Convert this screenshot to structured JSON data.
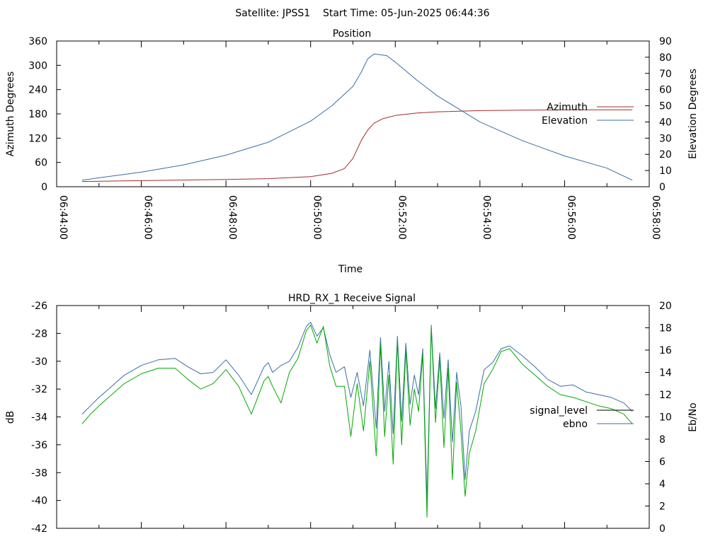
{
  "header": {
    "title": "Satellite: JPSS1    Start Time: 05-Jun-2025 06:44:36"
  },
  "chart_data": [
    {
      "type": "line",
      "title": "Position",
      "xlabel": "Time",
      "ylabel": "Azimuth Degrees",
      "y2label": "Elevation Degrees",
      "x_ticks": [
        "06:44:00",
        "06:46:00",
        "06:48:00",
        "06:50:00",
        "06:52:00",
        "06:54:00",
        "06:56:00",
        "06:58:00"
      ],
      "xlim_minutes": [
        0,
        14
      ],
      "ylim": [
        0,
        360
      ],
      "y_ticks": [
        0,
        60,
        120,
        180,
        240,
        300,
        360
      ],
      "y2lim": [
        0,
        90
      ],
      "y2_ticks": [
        0,
        10,
        20,
        30,
        40,
        50,
        60,
        70,
        80,
        90
      ],
      "legend_position": "right",
      "grid": false,
      "series": [
        {
          "name": "Azimuth",
          "axis": "left",
          "color": "#a52a2a",
          "x_minutes": [
            0.6,
            2,
            4,
            5,
            6,
            6.5,
            6.8,
            7.0,
            7.2,
            7.35,
            7.5,
            7.7,
            8,
            8.5,
            9,
            10,
            11,
            12,
            13,
            13.6
          ],
          "values": [
            13,
            15,
            18,
            20,
            25,
            33,
            45,
            70,
            115,
            140,
            157,
            168,
            176,
            182,
            185,
            188,
            189,
            190,
            190,
            190
          ]
        },
        {
          "name": "Elevation",
          "axis": "right",
          "color": "#3a6ea5",
          "x_minutes": [
            0.6,
            1,
            2,
            3,
            4,
            5,
            6,
            6.5,
            7,
            7.2,
            7.35,
            7.5,
            7.8,
            8,
            8.5,
            9,
            10,
            11,
            12,
            13,
            13.6
          ],
          "values": [
            4,
            5.5,
            9,
            13.5,
            19.5,
            27.5,
            40.5,
            50,
            62,
            71,
            79,
            82,
            81,
            77,
            66,
            56,
            40,
            28.5,
            19,
            11.5,
            4
          ]
        }
      ]
    },
    {
      "type": "line",
      "title": "HRD_RX_1 Receive Signal",
      "ylabel": "dB",
      "y2label": "Eb/No",
      "xlim_minutes": [
        0,
        14
      ],
      "ylim": [
        -42,
        -26
      ],
      "y_ticks": [
        -42,
        -40,
        -38,
        -36,
        -34,
        -32,
        -30,
        -28,
        -26
      ],
      "y2lim": [
        0,
        20
      ],
      "y2_ticks": [
        0,
        2,
        4,
        6,
        8,
        10,
        12,
        14,
        16,
        18,
        20
      ],
      "legend_position": "right",
      "grid": false,
      "series": [
        {
          "name": "signal_level",
          "axis": "left",
          "color": "#3a6ea5",
          "x_minutes": [
            0.6,
            0.8,
            1.0,
            1.3,
            1.6,
            2.0,
            2.4,
            2.8,
            3.1,
            3.4,
            3.7,
            4.0,
            4.3,
            4.6,
            4.9,
            5.0,
            5.1,
            5.3,
            5.5,
            5.7,
            5.9,
            6.0,
            6.15,
            6.3,
            6.45,
            6.6,
            6.8,
            6.95,
            7.1,
            7.25,
            7.4,
            7.55,
            7.65,
            7.75,
            7.85,
            7.95,
            8.05,
            8.15,
            8.25,
            8.35,
            8.45,
            8.55,
            8.65,
            8.75,
            8.85,
            8.95,
            9.05,
            9.15,
            9.25,
            9.35,
            9.45,
            9.55,
            9.65,
            9.75,
            9.9,
            10.1,
            10.3,
            10.5,
            10.7,
            11.0,
            11.3,
            11.6,
            11.9,
            12.2,
            12.5,
            12.8,
            13.1,
            13.4,
            13.6
          ],
          "values": [
            -33.8,
            -33.2,
            -32.6,
            -31.8,
            -31.0,
            -30.3,
            -29.9,
            -29.8,
            -30.4,
            -30.9,
            -30.8,
            -29.9,
            -31.0,
            -32.4,
            -30.4,
            -30.1,
            -30.8,
            -30.3,
            -30.0,
            -29.0,
            -27.5,
            -27.2,
            -28.2,
            -27.6,
            -29.5,
            -30.8,
            -30.4,
            -32.6,
            -30.8,
            -33.2,
            -29.2,
            -34.8,
            -28.3,
            -33.6,
            -30.0,
            -35.2,
            -28.2,
            -34.3,
            -28.7,
            -33.1,
            -31.0,
            -32.4,
            -29.1,
            -40.0,
            -27.4,
            -33.4,
            -29.4,
            -34.1,
            -29.9,
            -35.8,
            -30.8,
            -33.2,
            -38.5,
            -35.0,
            -33.6,
            -30.6,
            -30.1,
            -29.1,
            -28.9,
            -29.6,
            -30.4,
            -31.3,
            -31.8,
            -31.7,
            -32.2,
            -32.4,
            -32.6,
            -33.0,
            -33.6
          ]
        },
        {
          "name": "ebno",
          "axis": "left",
          "color": "#00aa00",
          "x_minutes": [
            0.6,
            0.8,
            1.0,
            1.3,
            1.6,
            2.0,
            2.4,
            2.8,
            3.1,
            3.4,
            3.7,
            4.0,
            4.3,
            4.6,
            4.9,
            5.0,
            5.1,
            5.3,
            5.5,
            5.7,
            5.9,
            6.0,
            6.15,
            6.3,
            6.45,
            6.6,
            6.8,
            6.95,
            7.1,
            7.25,
            7.4,
            7.55,
            7.65,
            7.75,
            7.85,
            7.95,
            8.05,
            8.15,
            8.25,
            8.35,
            8.45,
            8.55,
            8.65,
            8.75,
            8.85,
            8.95,
            9.05,
            9.15,
            9.25,
            9.35,
            9.45,
            9.55,
            9.65,
            9.75,
            9.9,
            10.1,
            10.3,
            10.5,
            10.7,
            11.0,
            11.3,
            11.6,
            11.9,
            12.2,
            12.5,
            12.8,
            13.1,
            13.4,
            13.6
          ],
          "values": [
            -34.5,
            -33.8,
            -33.2,
            -32.4,
            -31.6,
            -30.9,
            -30.5,
            -30.5,
            -31.3,
            -32.0,
            -31.6,
            -30.6,
            -31.8,
            -33.8,
            -31.4,
            -31.1,
            -31.8,
            -33.0,
            -30.8,
            -29.8,
            -27.8,
            -27.4,
            -28.7,
            -27.5,
            -30.3,
            -31.8,
            -31.8,
            -35.4,
            -31.6,
            -35.0,
            -30.0,
            -36.8,
            -28.8,
            -35.4,
            -31.0,
            -37.4,
            -28.5,
            -36.0,
            -29.2,
            -34.6,
            -32.0,
            -33.6,
            -29.5,
            -41.2,
            -27.6,
            -34.4,
            -29.8,
            -36.2,
            -30.5,
            -38.5,
            -31.5,
            -35.0,
            -39.7,
            -36.6,
            -35.0,
            -31.6,
            -30.6,
            -29.3,
            -29.1,
            -30.2,
            -31.0,
            -31.8,
            -32.4,
            -32.6,
            -32.9,
            -33.2,
            -33.4,
            -33.8,
            -34.5
          ]
        }
      ]
    }
  ]
}
